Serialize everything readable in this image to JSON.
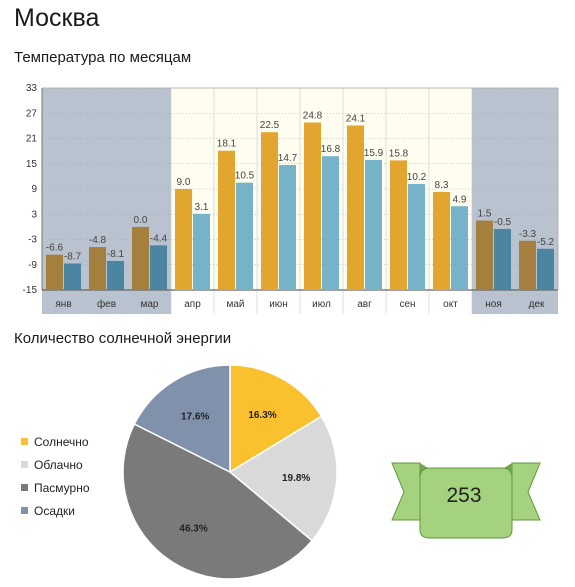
{
  "page": {
    "title": "Москва"
  },
  "temperature": {
    "title": "Температура по месяцам"
  },
  "sunshine": {
    "title": "Количество солнечной энергии"
  },
  "badge": {
    "value": "253"
  },
  "colors": {
    "winter_band": "#b9c2cf",
    "summer_band": "#fefdf0",
    "series_a_summer": "#e2a62e",
    "series_b_summer": "#76b3c9",
    "series_a_winter": "#a57f3d",
    "series_b_winter": "#4c85a1",
    "pie_sunny": "#fbc02d",
    "pie_cloudy": "#d9d9d9",
    "pie_overcast": "#7a7a7a",
    "pie_precip": "#8092ab",
    "badge_fill": "#a5d27e"
  },
  "chart_data": [
    {
      "type": "bar",
      "title": "Температура по месяцам",
      "categories": [
        "янв",
        "фев",
        "мар",
        "апр",
        "май",
        "июн",
        "июл",
        "авг",
        "сен",
        "окт",
        "ноя",
        "дек"
      ],
      "series": [
        {
          "values": [
            -6.6,
            -4.8,
            0.0,
            9.0,
            18.1,
            22.5,
            24.8,
            24.1,
            15.8,
            8.3,
            1.5,
            -3.3
          ]
        },
        {
          "values": [
            -8.7,
            -8.1,
            -4.4,
            3.1,
            10.5,
            14.7,
            16.8,
            15.9,
            10.2,
            4.9,
            -0.5,
            -5.2
          ]
        }
      ],
      "value_labels": [
        [
          "-6.6",
          "-4.8",
          "0.0",
          "9.0",
          "18.1",
          "22.5",
          "24.8",
          "24.1",
          "15.8",
          "8.3",
          "1.5",
          "-3.3"
        ],
        [
          "-8.7",
          "-8.1",
          "-4.4",
          "3.1",
          "10.5",
          "14.7",
          "16.8",
          "15.9",
          "10.2",
          "4.9",
          "-0.5",
          "-5.2"
        ]
      ],
      "ylim": [
        -15,
        33
      ],
      "yticks": [
        -15,
        -9,
        -3,
        3,
        9,
        15,
        21,
        27,
        33
      ],
      "ytick_labels": [
        "-15",
        "-9",
        "-3",
        "3",
        "9",
        "15",
        "21",
        "27",
        "33"
      ],
      "winter_months": [
        "янв",
        "фев",
        "мар",
        "ноя",
        "дек"
      ],
      "grid": true
    },
    {
      "type": "pie",
      "title": "Количество солнечной энергии",
      "slices": [
        {
          "name": "Солнечно",
          "value": 16.3,
          "label": "16.3%"
        },
        {
          "name": "Облачно",
          "value": 19.8,
          "label": "19.8%"
        },
        {
          "name": "Пасмурно",
          "value": 46.3,
          "label": "46.3%"
        },
        {
          "name": "Осадки",
          "value": 17.6,
          "label": "17.6%"
        }
      ],
      "legend_position": "left"
    }
  ]
}
